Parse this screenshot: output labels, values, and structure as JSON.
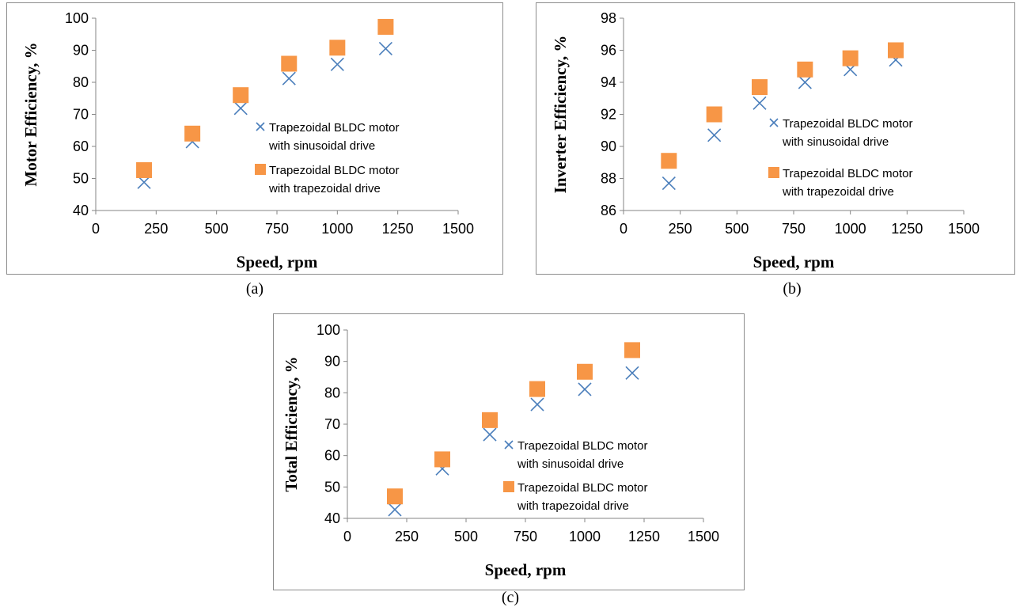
{
  "colors": {
    "sinusoidal": "#4a7ebb",
    "trapezoidal": "#f79646",
    "axis": "#868686"
  },
  "captions": [
    "(a)",
    "(b)",
    "(c)"
  ],
  "chart_data": [
    {
      "type": "scatter",
      "panel": "a",
      "xlabel": "Speed, rpm",
      "ylabel": "Motor Efficiency, %",
      "xlim": [
        0,
        1500
      ],
      "ylim": [
        40,
        100
      ],
      "xticks": [
        0,
        250,
        500,
        750,
        1000,
        1250,
        1500
      ],
      "yticks": [
        40,
        50,
        60,
        70,
        80,
        90,
        100
      ],
      "grid": false,
      "legend_position": "center-right",
      "series": [
        {
          "name": "Trapezoidal BLDC motor with sinusoidal drive",
          "marker": "x",
          "x": [
            200,
            400,
            600,
            800,
            1000,
            1200
          ],
          "y": [
            48.8,
            61.5,
            71.9,
            81.2,
            85.6,
            90.5
          ]
        },
        {
          "name": "Trapezoidal BLDC motor with trapezoidal drive",
          "marker": "square",
          "x": [
            200,
            400,
            600,
            800,
            1000,
            1200
          ],
          "y": [
            52.6,
            64.0,
            76.0,
            85.8,
            90.8,
            97.3
          ]
        }
      ]
    },
    {
      "type": "scatter",
      "panel": "b",
      "xlabel": "Speed, rpm",
      "ylabel": "Inverter Efficiency, %",
      "xlim": [
        0,
        1500
      ],
      "ylim": [
        86,
        98
      ],
      "xticks": [
        0,
        250,
        500,
        750,
        1000,
        1250,
        1500
      ],
      "yticks": [
        86,
        88,
        90,
        92,
        94,
        96,
        98
      ],
      "grid": false,
      "legend_position": "center-right",
      "series": [
        {
          "name": "Trapezoidal BLDC motor with sinusoidal drive",
          "marker": "x",
          "x": [
            200,
            400,
            600,
            800,
            1000,
            1200
          ],
          "y": [
            87.7,
            90.7,
            92.7,
            94.0,
            94.8,
            95.4
          ]
        },
        {
          "name": "Trapezoidal BLDC motor with trapezoidal drive",
          "marker": "square",
          "x": [
            200,
            400,
            600,
            800,
            1000,
            1200
          ],
          "y": [
            89.1,
            92.0,
            93.7,
            94.8,
            95.5,
            96.0
          ]
        }
      ]
    },
    {
      "type": "scatter",
      "panel": "c",
      "xlabel": "Speed, rpm",
      "ylabel": "Total Efficiency, %",
      "xlim": [
        0,
        1500
      ],
      "ylim": [
        40,
        100
      ],
      "xticks": [
        0,
        250,
        500,
        750,
        1000,
        1250,
        1500
      ],
      "yticks": [
        40,
        50,
        60,
        70,
        80,
        90,
        100
      ],
      "grid": false,
      "legend_position": "bottom-right",
      "series": [
        {
          "name": "Trapezoidal BLDC motor with sinusoidal drive",
          "marker": "x",
          "x": [
            200,
            400,
            600,
            800,
            1000,
            1200
          ],
          "y": [
            42.8,
            55.8,
            66.7,
            76.3,
            81.1,
            86.3
          ]
        },
        {
          "name": "Trapezoidal BLDC motor with trapezoidal drive",
          "marker": "square",
          "x": [
            200,
            400,
            600,
            800,
            1000,
            1200
          ],
          "y": [
            47.0,
            58.8,
            71.3,
            81.2,
            86.7,
            93.6
          ]
        }
      ]
    }
  ]
}
